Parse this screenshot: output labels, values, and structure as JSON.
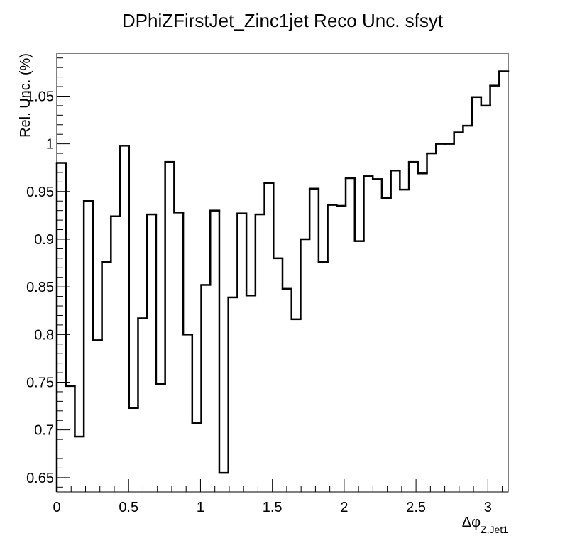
{
  "chart_data": {
    "type": "line",
    "style": "step-histogram",
    "title": "DPhiZFirstJet_Zinc1jet Reco Unc. sfsyt",
    "xlabel": "Δφ",
    "xlabel_subscript": "Z,Jet1",
    "ylabel": "Rel. Unc. (%)",
    "xlim": [
      0,
      3.1416
    ],
    "ylim": [
      0.635,
      1.095
    ],
    "xticks": [
      0,
      0.5,
      1,
      1.5,
      2,
      2.5,
      3
    ],
    "xtick_labels": [
      "0",
      "0.5",
      "1",
      "1.5",
      "2",
      "2.5",
      "3"
    ],
    "yticks": [
      0.65,
      0.7,
      0.75,
      0.8,
      0.85,
      0.9,
      0.95,
      1,
      1.05
    ],
    "ytick_labels": [
      "0.65",
      "0.7",
      "0.75",
      "0.8",
      "0.85",
      "0.9",
      "0.95",
      "1",
      "1.05"
    ],
    "grid": false,
    "legend": "none",
    "bins": 50,
    "values": [
      0.98,
      0.746,
      0.693,
      0.94,
      0.794,
      0.876,
      0.924,
      0.998,
      0.723,
      0.817,
      0.926,
      0.748,
      0.981,
      0.928,
      0.8,
      0.707,
      0.852,
      0.93,
      0.655,
      0.839,
      0.927,
      0.841,
      0.926,
      0.959,
      0.88,
      0.848,
      0.816,
      0.9,
      0.953,
      0.876,
      0.936,
      0.935,
      0.964,
      0.898,
      0.966,
      0.963,
      0.943,
      0.972,
      0.952,
      0.981,
      0.969,
      0.99,
      1.0,
      1.0,
      1.012,
      1.019,
      1.049,
      1.04,
      1.061,
      1.076
    ],
    "line_color": "#000000"
  }
}
